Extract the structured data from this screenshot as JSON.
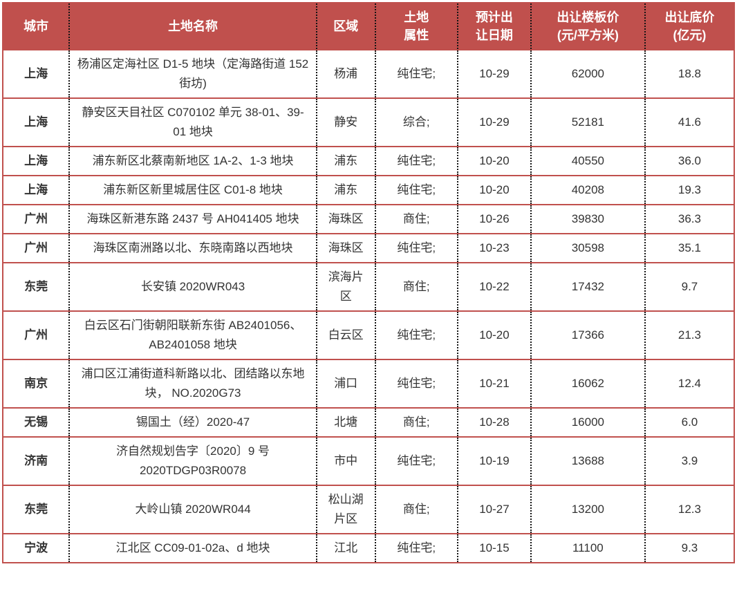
{
  "colors": {
    "header_bg": "#C0504D",
    "header_text": "#FFFFFF",
    "grid_red": "#C0504D",
    "grid_dotted": "#141414",
    "body_text": "#333333"
  },
  "table": {
    "columns": [
      {
        "key": "city",
        "label": "城市"
      },
      {
        "key": "name",
        "label": "土地名称"
      },
      {
        "key": "region",
        "label": "区域"
      },
      {
        "key": "attribute",
        "label": "土地\n属性"
      },
      {
        "key": "date",
        "label": "预计出\n让日期"
      },
      {
        "key": "floor_price",
        "label": "出让楼板价\n(元/平方米)"
      },
      {
        "key": "base_price",
        "label": "出让底价\n(亿元)"
      }
    ],
    "rows": [
      {
        "city": "上海",
        "name": "杨浦区定海社区 D1-5 地块（定海路街道 152 街坊)",
        "region": "杨浦",
        "attribute": "纯住宅;",
        "date": "10-29",
        "floor_price": "62000",
        "base_price": "18.8"
      },
      {
        "city": "上海",
        "name": "静安区天目社区 C070102 单元 38-01、39-01 地块",
        "region": "静安",
        "attribute": "综合;",
        "date": "10-29",
        "floor_price": "52181",
        "base_price": "41.6"
      },
      {
        "city": "上海",
        "name": "浦东新区北蔡南新地区 1A-2、1-3 地块",
        "region": "浦东",
        "attribute": "纯住宅;",
        "date": "10-20",
        "floor_price": "40550",
        "base_price": "36.0"
      },
      {
        "city": "上海",
        "name": "浦东新区新里城居住区 C01-8 地块",
        "region": "浦东",
        "attribute": "纯住宅;",
        "date": "10-20",
        "floor_price": "40208",
        "base_price": "19.3"
      },
      {
        "city": "广州",
        "name": "海珠区新港东路 2437 号 AH041405 地块",
        "region": "海珠区",
        "attribute": "商住;",
        "date": "10-26",
        "floor_price": "39830",
        "base_price": "36.3"
      },
      {
        "city": "广州",
        "name": "海珠区南洲路以北、东晓南路以西地块",
        "region": "海珠区",
        "attribute": "纯住宅;",
        "date": "10-23",
        "floor_price": "30598",
        "base_price": "35.1"
      },
      {
        "city": "东莞",
        "name": "长安镇 2020WR043",
        "region": "滨海片区",
        "attribute": "商住;",
        "date": "10-22",
        "floor_price": "17432",
        "base_price": "9.7"
      },
      {
        "city": "广州",
        "name": "白云区石门街朝阳联新东街 AB2401056、AB2401058 地块",
        "region": "白云区",
        "attribute": "纯住宅;",
        "date": "10-20",
        "floor_price": "17366",
        "base_price": "21.3"
      },
      {
        "city": "南京",
        "name": "浦口区江浦街道科新路以北、团结路以东地块，  NO.2020G73",
        "region": "浦口",
        "attribute": "纯住宅;",
        "date": "10-21",
        "floor_price": "16062",
        "base_price": "12.4"
      },
      {
        "city": "无锡",
        "name": "锡国土（经）2020-47",
        "region": "北塘",
        "attribute": "商住;",
        "date": "10-28",
        "floor_price": "16000",
        "base_price": "6.0"
      },
      {
        "city": "济南",
        "name": "济自然规划告字〔2020〕9 号 2020TDGP03R0078",
        "region": "市中",
        "attribute": "纯住宅;",
        "date": "10-19",
        "floor_price": "13688",
        "base_price": "3.9"
      },
      {
        "city": "东莞",
        "name": "大岭山镇 2020WR044",
        "region": "松山湖片区",
        "attribute": "商住;",
        "date": "10-27",
        "floor_price": "13200",
        "base_price": "12.3"
      },
      {
        "city": "宁波",
        "name": "江北区 CC09-01-02a、d 地块",
        "region": "江北",
        "attribute": "纯住宅;",
        "date": "10-15",
        "floor_price": "11100",
        "base_price": "9.3"
      }
    ]
  }
}
